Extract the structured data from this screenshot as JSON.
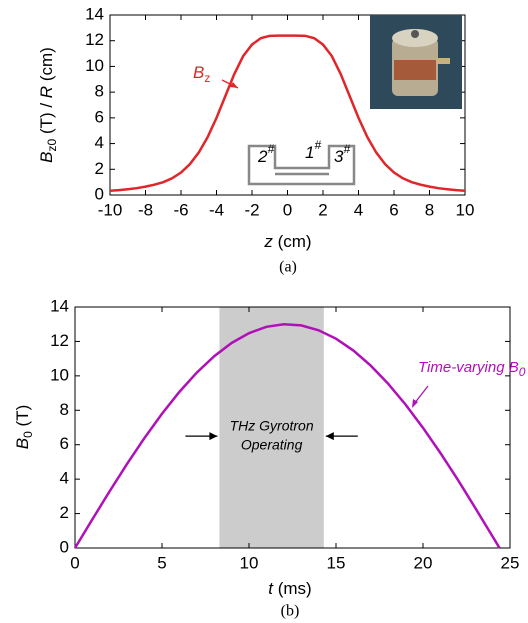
{
  "chart_data": [
    {
      "type": "line",
      "xlabel": [
        "z",
        " (cm)"
      ],
      "ylabel": [
        "B",
        "z0",
        " (T) / ",
        "R",
        " (cm)"
      ],
      "caption": "(a)",
      "annotation": [
        "B",
        "z"
      ],
      "coil_labels": [
        [
          "2",
          "#"
        ],
        [
          "1",
          "#"
        ],
        [
          "3",
          "#"
        ]
      ],
      "xlim": [
        -10,
        10
      ],
      "xticks": [
        -10,
        -8,
        -6,
        -4,
        -2,
        0,
        2,
        4,
        6,
        8,
        10
      ],
      "ylim": [
        0,
        14
      ],
      "yticks": [
        0,
        2,
        4,
        6,
        8,
        10,
        12,
        14
      ],
      "x": [
        -10,
        -9.5,
        -9,
        -8.5,
        -8,
        -7.5,
        -7,
        -6.5,
        -6,
        -5.5,
        -5,
        -4.5,
        -4,
        -3.5,
        -3,
        -2.5,
        -2,
        -1.5,
        -1,
        -0.5,
        0,
        0.5,
        1,
        1.5,
        2,
        2.5,
        3,
        3.5,
        4,
        4.5,
        5,
        5.5,
        6,
        6.5,
        7,
        7.5,
        8,
        8.5,
        9,
        9.5,
        10
      ],
      "series": [
        {
          "color": "#e0262a",
          "values": [
            0.33,
            0.38,
            0.45,
            0.53,
            0.65,
            0.8,
            1.0,
            1.3,
            1.75,
            2.4,
            3.3,
            4.5,
            6.0,
            7.7,
            9.4,
            10.8,
            11.7,
            12.2,
            12.38,
            12.4,
            12.4,
            12.4,
            12.38,
            12.2,
            11.7,
            10.8,
            9.4,
            7.7,
            6.0,
            4.5,
            3.3,
            2.4,
            1.75,
            1.3,
            1.0,
            0.8,
            0.65,
            0.53,
            0.45,
            0.38,
            0.33
          ]
        }
      ]
    },
    {
      "type": "line",
      "xlabel": [
        "t",
        " (ms)"
      ],
      "ylabel": [
        "B",
        "0",
        " (T)"
      ],
      "caption": "(b)",
      "annotation": [
        "Time-varying B",
        "0"
      ],
      "shade": [
        8.3,
        14.3
      ],
      "shade_label": [
        "THz Gyrotron",
        "Operating"
      ],
      "xlim": [
        0,
        25
      ],
      "xticks": [
        0,
        5,
        10,
        15,
        20,
        25
      ],
      "ylim": [
        0,
        14
      ],
      "yticks": [
        0,
        2,
        4,
        6,
        8,
        10,
        12,
        14
      ],
      "x": [
        0,
        1,
        2,
        3,
        4,
        5,
        6,
        7,
        8,
        9,
        10,
        11,
        12,
        13,
        14,
        15,
        16,
        17,
        18,
        19,
        20,
        21,
        22,
        23,
        24,
        24.4
      ],
      "series": [
        {
          "color": "#b010b8",
          "values": [
            0,
            1.67,
            3.31,
            4.9,
            6.4,
            7.8,
            9.07,
            10.19,
            11.14,
            11.91,
            12.48,
            12.85,
            13.0,
            12.93,
            12.65,
            12.16,
            11.47,
            10.59,
            9.54,
            8.33,
            6.98,
            5.52,
            3.97,
            2.33,
            0.67,
            0
          ]
        }
      ]
    }
  ]
}
